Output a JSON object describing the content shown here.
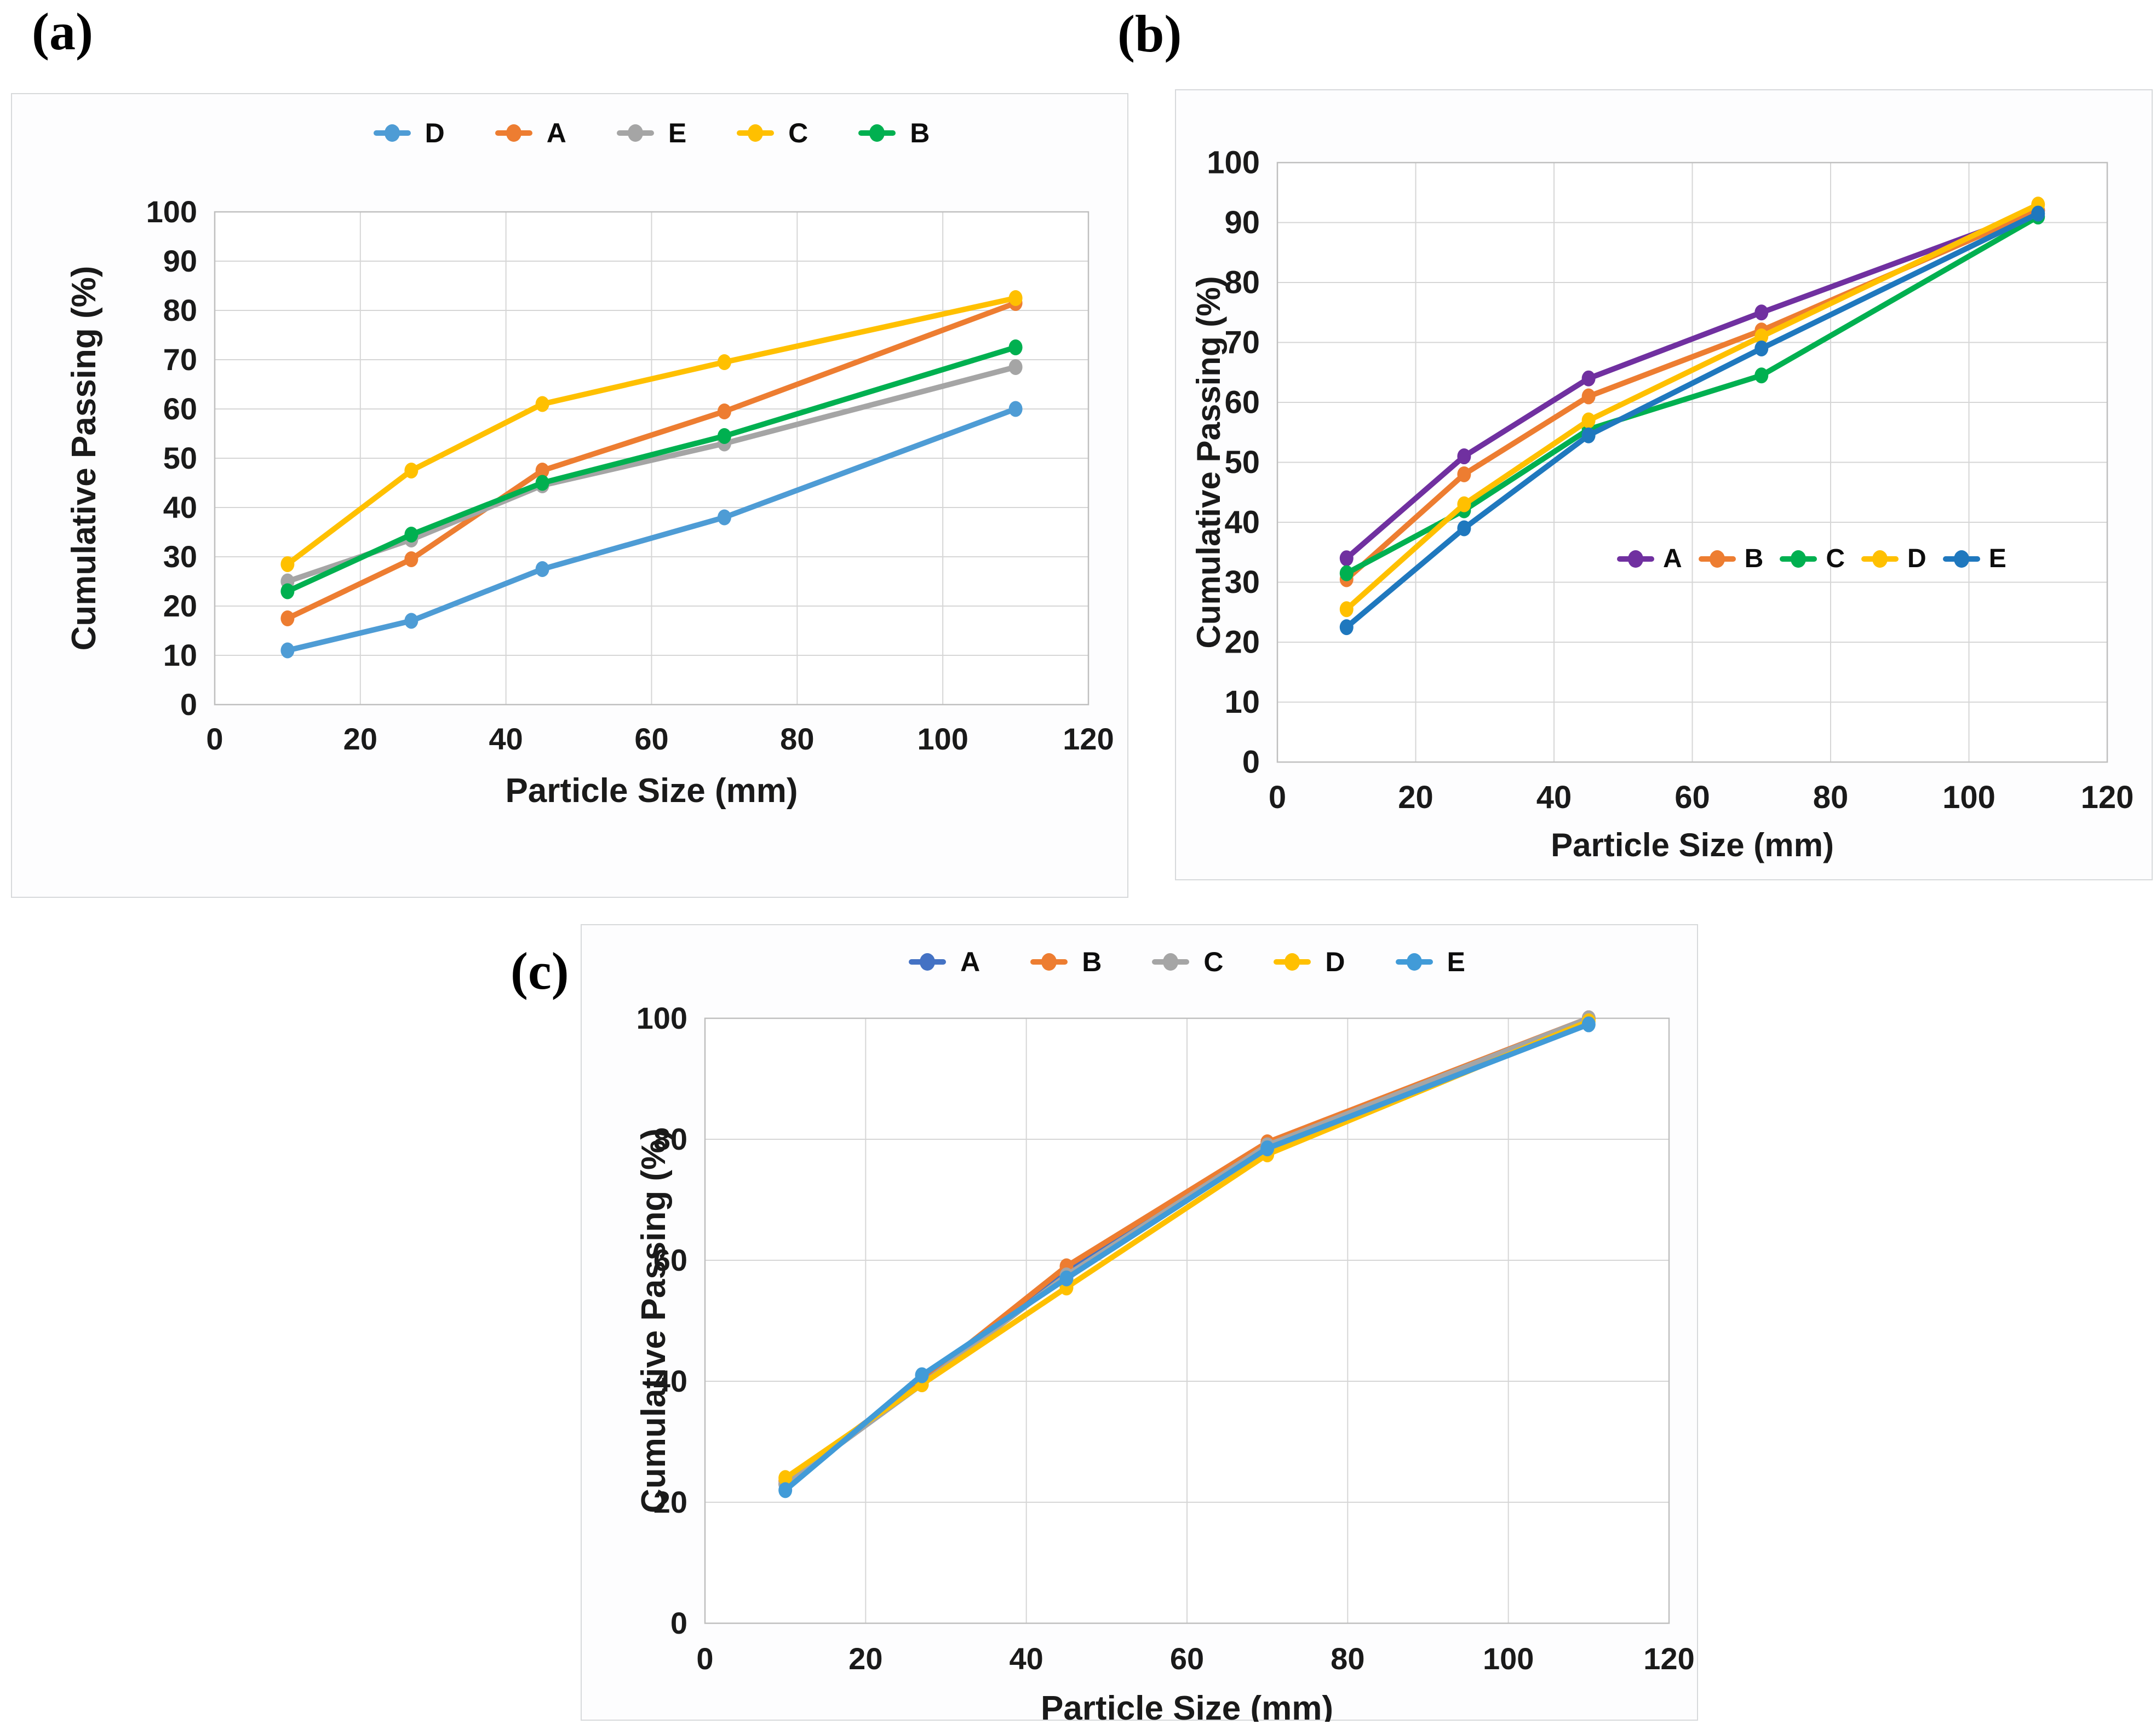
{
  "figure": {
    "ylabel_shared": "Cumulative Passing (%)",
    "xlabel_shared": "Particle Size (mm)"
  },
  "chart_data": [
    {
      "id": "a",
      "type": "line",
      "panel_label": "(a)",
      "title": "",
      "xlabel": "Particle Size (mm)",
      "ylabel": "Cumulative Passing (%)",
      "x": [
        10,
        27,
        45,
        70,
        110
      ],
      "xlim": [
        0,
        120
      ],
      "ylim": [
        0,
        100
      ],
      "x_ticks": [
        0,
        20,
        40,
        60,
        80,
        100,
        120
      ],
      "y_ticks": [
        0,
        10,
        20,
        30,
        40,
        50,
        60,
        70,
        80,
        90,
        100
      ],
      "grid": true,
      "legend_position": "top-center",
      "series": [
        {
          "name": "D",
          "color": "#4E9CD5",
          "values": [
            11,
            17,
            27.5,
            38,
            60
          ]
        },
        {
          "name": "A",
          "color": "#ED7D31",
          "values": [
            17.5,
            29.5,
            47.5,
            59.5,
            81.5
          ]
        },
        {
          "name": "E",
          "color": "#A5A5A5",
          "values": [
            25,
            33.5,
            44.5,
            53,
            68.5
          ]
        },
        {
          "name": "C",
          "color": "#FFC000",
          "values": [
            28.5,
            47.5,
            61,
            69.5,
            82.5
          ]
        },
        {
          "name": "B",
          "color": "#00B050",
          "values": [
            23,
            34.5,
            45,
            54.5,
            72.5
          ]
        }
      ]
    },
    {
      "id": "b",
      "type": "line",
      "panel_label": "(b)",
      "title": "",
      "xlabel": "Particle Size (mm)",
      "ylabel": "Cumulative Passing (%)",
      "x": [
        10,
        27,
        45,
        70,
        110
      ],
      "xlim": [
        0,
        120
      ],
      "ylim": [
        0,
        100
      ],
      "x_ticks": [
        0,
        20,
        40,
        60,
        80,
        100,
        120
      ],
      "y_ticks": [
        0,
        10,
        20,
        30,
        40,
        50,
        60,
        70,
        80,
        90,
        100
      ],
      "grid": true,
      "legend_position": "inside-right",
      "series": [
        {
          "name": "A",
          "color": "#7030A0",
          "values": [
            34,
            51,
            64,
            75,
            92
          ]
        },
        {
          "name": "B",
          "color": "#ED7D31",
          "values": [
            30.5,
            48,
            61,
            72,
            92
          ]
        },
        {
          "name": "C",
          "color": "#00B050",
          "values": [
            31.5,
            42,
            55.5,
            64.5,
            91
          ]
        },
        {
          "name": "D",
          "color": "#FFC000",
          "values": [
            25.5,
            43,
            57,
            71,
            93
          ]
        },
        {
          "name": "E",
          "color": "#1F78BE",
          "values": [
            22.5,
            39,
            54.5,
            69,
            91.5
          ]
        }
      ]
    },
    {
      "id": "c",
      "type": "line",
      "panel_label": "(c)",
      "title": "",
      "xlabel": "Particle Size (mm)",
      "ylabel": "Cumulative Passing (%)",
      "x": [
        10,
        27,
        45,
        70,
        110
      ],
      "xlim": [
        0,
        120
      ],
      "ylim": [
        0,
        100
      ],
      "x_ticks": [
        0,
        20,
        40,
        60,
        80,
        100,
        120
      ],
      "y_ticks": [
        0,
        20,
        40,
        60,
        80,
        100
      ],
      "grid": true,
      "legend_position": "top-center",
      "series": [
        {
          "name": "A",
          "color": "#4472C4",
          "values": [
            23,
            40,
            58,
            79,
            100
          ]
        },
        {
          "name": "B",
          "color": "#ED7D31",
          "values": [
            23.5,
            40,
            59,
            79.5,
            100
          ]
        },
        {
          "name": "C",
          "color": "#A5A5A5",
          "values": [
            23,
            39.5,
            57.5,
            79,
            100
          ]
        },
        {
          "name": "D",
          "color": "#FFC000",
          "values": [
            24,
            39.5,
            55.5,
            77.5,
            99.5
          ]
        },
        {
          "name": "E",
          "color": "#419BD8",
          "values": [
            22,
            41,
            57,
            78.5,
            99
          ]
        }
      ]
    }
  ]
}
